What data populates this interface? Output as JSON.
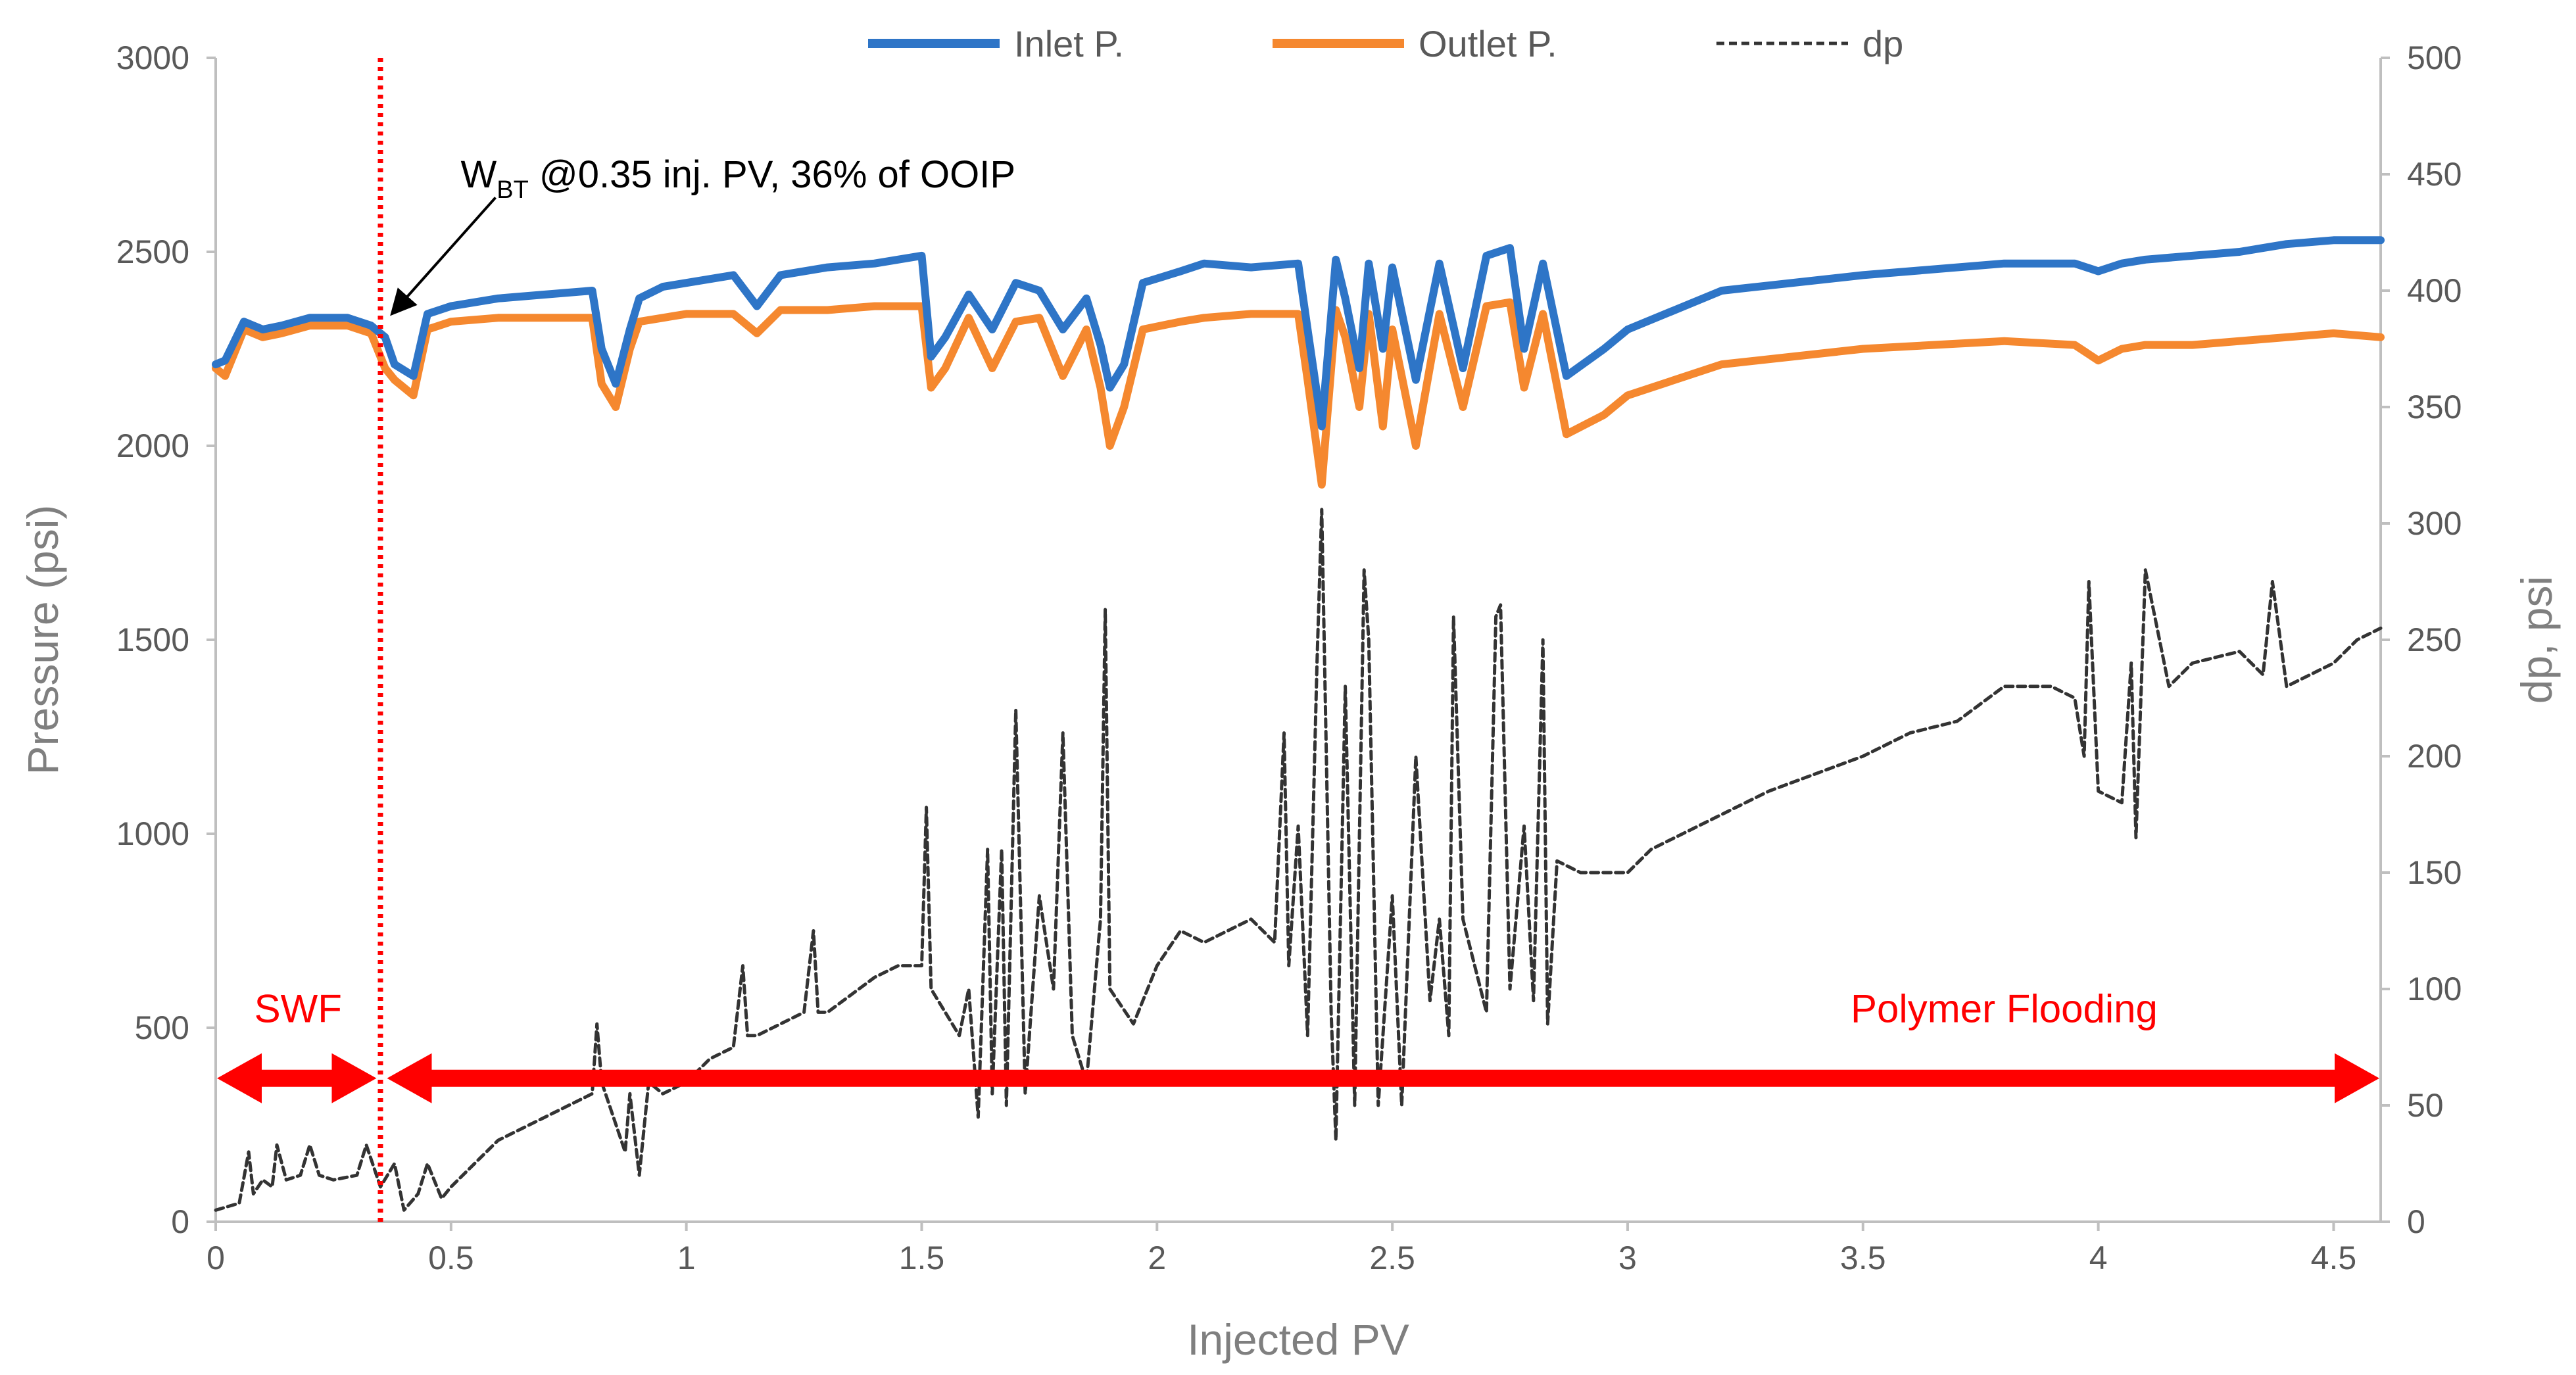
{
  "chart_data": {
    "type": "line",
    "title": "",
    "xlabel": "Injected PV",
    "ylabel": "Pressure (psi)",
    "y2label": "dp, psi",
    "xlim": [
      0,
      4.6
    ],
    "ylim": [
      0,
      3000
    ],
    "y2lim": [
      0,
      500
    ],
    "xticks": [
      "0",
      "0.5",
      "1",
      "1.5",
      "2",
      "2.5",
      "3",
      "3.5",
      "4",
      "4.5"
    ],
    "yticks": [
      "0",
      "500",
      "1000",
      "1500",
      "2000",
      "2500",
      "3000"
    ],
    "y2ticks": [
      "0",
      "50",
      "100",
      "150",
      "200",
      "250",
      "300",
      "350",
      "400",
      "450",
      "500"
    ],
    "legend_position": "top",
    "grid": false,
    "series": [
      {
        "name": "Inlet P.",
        "axis": "left",
        "color": "#2e75c7",
        "dash": "solid",
        "x": [
          0,
          0.02,
          0.06,
          0.1,
          0.14,
          0.2,
          0.28,
          0.33,
          0.36,
          0.38,
          0.42,
          0.45,
          0.5,
          0.6,
          0.7,
          0.8,
          0.82,
          0.85,
          0.88,
          0.9,
          0.95,
          1.0,
          1.1,
          1.15,
          1.2,
          1.3,
          1.4,
          1.5,
          1.52,
          1.55,
          1.6,
          1.65,
          1.7,
          1.75,
          1.8,
          1.85,
          1.88,
          1.9,
          1.93,
          1.97,
          2.05,
          2.1,
          2.2,
          2.3,
          2.32,
          2.35,
          2.38,
          2.4,
          2.43,
          2.45,
          2.48,
          2.5,
          2.55,
          2.6,
          2.65,
          2.7,
          2.75,
          2.78,
          2.82,
          2.87,
          2.95,
          3.0,
          3.2,
          3.5,
          3.8,
          3.95,
          4.0,
          4.05,
          4.1,
          4.2,
          4.3,
          4.4,
          4.5,
          4.6
        ],
        "y": [
          2210,
          2220,
          2320,
          2300,
          2310,
          2330,
          2330,
          2310,
          2280,
          2210,
          2180,
          2340,
          2360,
          2380,
          2390,
          2400,
          2250,
          2160,
          2300,
          2380,
          2410,
          2420,
          2440,
          2360,
          2440,
          2460,
          2470,
          2490,
          2230,
          2280,
          2390,
          2300,
          2420,
          2400,
          2300,
          2380,
          2260,
          2150,
          2210,
          2420,
          2450,
          2470,
          2460,
          2470,
          2300,
          2050,
          2480,
          2380,
          2200,
          2470,
          2250,
          2460,
          2170,
          2470,
          2200,
          2490,
          2510,
          2250,
          2470,
          2180,
          2250,
          2300,
          2400,
          2440,
          2470,
          2470,
          2450,
          2470,
          2480,
          2490,
          2500,
          2520,
          2530,
          2530
        ]
      },
      {
        "name": "Outlet P.",
        "axis": "left",
        "color": "#f5882f",
        "dash": "solid",
        "x": [
          0,
          0.02,
          0.06,
          0.1,
          0.14,
          0.2,
          0.28,
          0.33,
          0.36,
          0.38,
          0.42,
          0.45,
          0.5,
          0.6,
          0.7,
          0.8,
          0.82,
          0.85,
          0.88,
          0.9,
          0.95,
          1.0,
          1.1,
          1.15,
          1.2,
          1.3,
          1.4,
          1.5,
          1.52,
          1.55,
          1.6,
          1.65,
          1.7,
          1.75,
          1.8,
          1.85,
          1.88,
          1.9,
          1.93,
          1.97,
          2.05,
          2.1,
          2.2,
          2.3,
          2.32,
          2.35,
          2.38,
          2.4,
          2.43,
          2.45,
          2.48,
          2.5,
          2.55,
          2.6,
          2.65,
          2.7,
          2.75,
          2.78,
          2.82,
          2.87,
          2.95,
          3.0,
          3.2,
          3.5,
          3.8,
          3.95,
          4.0,
          4.05,
          4.1,
          4.2,
          4.3,
          4.4,
          4.5,
          4.6
        ],
        "y": [
          2200,
          2180,
          2300,
          2280,
          2290,
          2310,
          2310,
          2290,
          2200,
          2170,
          2130,
          2300,
          2320,
          2330,
          2330,
          2330,
          2160,
          2100,
          2250,
          2320,
          2330,
          2340,
          2340,
          2290,
          2350,
          2350,
          2360,
          2360,
          2150,
          2200,
          2330,
          2200,
          2320,
          2330,
          2180,
          2300,
          2150,
          2000,
          2100,
          2300,
          2320,
          2330,
          2340,
          2340,
          2170,
          1900,
          2350,
          2280,
          2100,
          2340,
          2050,
          2300,
          2000,
          2340,
          2100,
          2360,
          2370,
          2150,
          2340,
          2030,
          2080,
          2130,
          2210,
          2250,
          2270,
          2260,
          2220,
          2250,
          2260,
          2260,
          2270,
          2280,
          2290,
          2280
        ]
      },
      {
        "name": "dp",
        "axis": "right",
        "color": "#333333",
        "dash": "dashed",
        "x": [
          0,
          0.05,
          0.07,
          0.08,
          0.1,
          0.12,
          0.13,
          0.15,
          0.18,
          0.2,
          0.22,
          0.25,
          0.3,
          0.32,
          0.35,
          0.38,
          0.4,
          0.43,
          0.45,
          0.48,
          0.5,
          0.6,
          0.7,
          0.8,
          0.81,
          0.82,
          0.87,
          0.88,
          0.9,
          0.92,
          0.95,
          1.0,
          1.05,
          1.1,
          1.12,
          1.13,
          1.15,
          1.2,
          1.25,
          1.27,
          1.28,
          1.3,
          1.4,
          1.45,
          1.5,
          1.51,
          1.52,
          1.55,
          1.58,
          1.6,
          1.62,
          1.64,
          1.65,
          1.67,
          1.68,
          1.7,
          1.72,
          1.75,
          1.78,
          1.8,
          1.82,
          1.85,
          1.88,
          1.89,
          1.9,
          1.95,
          2.0,
          2.05,
          2.1,
          2.2,
          2.25,
          2.27,
          2.28,
          2.3,
          2.32,
          2.34,
          2.35,
          2.37,
          2.38,
          2.4,
          2.42,
          2.44,
          2.45,
          2.47,
          2.5,
          2.52,
          2.55,
          2.58,
          2.6,
          2.62,
          2.63,
          2.65,
          2.7,
          2.72,
          2.73,
          2.75,
          2.78,
          2.8,
          2.82,
          2.83,
          2.85,
          2.9,
          3.0,
          3.05,
          3.1,
          3.2,
          3.3,
          3.5,
          3.6,
          3.7,
          3.8,
          3.9,
          3.95,
          3.97,
          3.98,
          4.0,
          4.05,
          4.07,
          4.08,
          4.1,
          4.15,
          4.2,
          4.3,
          4.35,
          4.37,
          4.4,
          4.5,
          4.55,
          4.6
        ],
        "y": [
          5,
          8,
          30,
          12,
          18,
          15,
          33,
          18,
          20,
          33,
          20,
          18,
          20,
          33,
          15,
          25,
          5,
          12,
          25,
          10,
          15,
          35,
          45,
          55,
          85,
          60,
          30,
          55,
          20,
          60,
          55,
          60,
          70,
          75,
          110,
          80,
          80,
          85,
          90,
          125,
          90,
          90,
          105,
          110,
          110,
          178,
          100,
          90,
          80,
          100,
          45,
          160,
          55,
          160,
          50,
          220,
          55,
          140,
          100,
          210,
          80,
          60,
          130,
          263,
          100,
          85,
          110,
          125,
          120,
          130,
          120,
          210,
          110,
          170,
          80,
          240,
          306,
          90,
          35,
          230,
          50,
          280,
          250,
          50,
          140,
          50,
          200,
          95,
          130,
          80,
          260,
          130,
          90,
          260,
          265,
          100,
          170,
          95,
          250,
          85,
          155,
          150,
          150,
          160,
          165,
          175,
          185,
          200,
          210,
          215,
          230,
          230,
          225,
          200,
          275,
          185,
          180,
          240,
          165,
          280,
          230,
          240,
          245,
          235,
          275,
          230,
          240,
          250,
          255
        ]
      }
    ],
    "annotations": {
      "breakthrough_pv": 0.35,
      "breakthrough_label_main": "W",
      "breakthrough_label_sub": "BT",
      "breakthrough_label_rest": " @0.35 inj. PV, 36% of OOIP",
      "swf_label": "SWF",
      "polymer_label": "Polymer Flooding",
      "arrow_pressure": 370,
      "swf_range": [
        0,
        0.35
      ],
      "polymer_range": [
        0.35,
        4.6
      ],
      "annotation_color": "#ff0000"
    }
  }
}
